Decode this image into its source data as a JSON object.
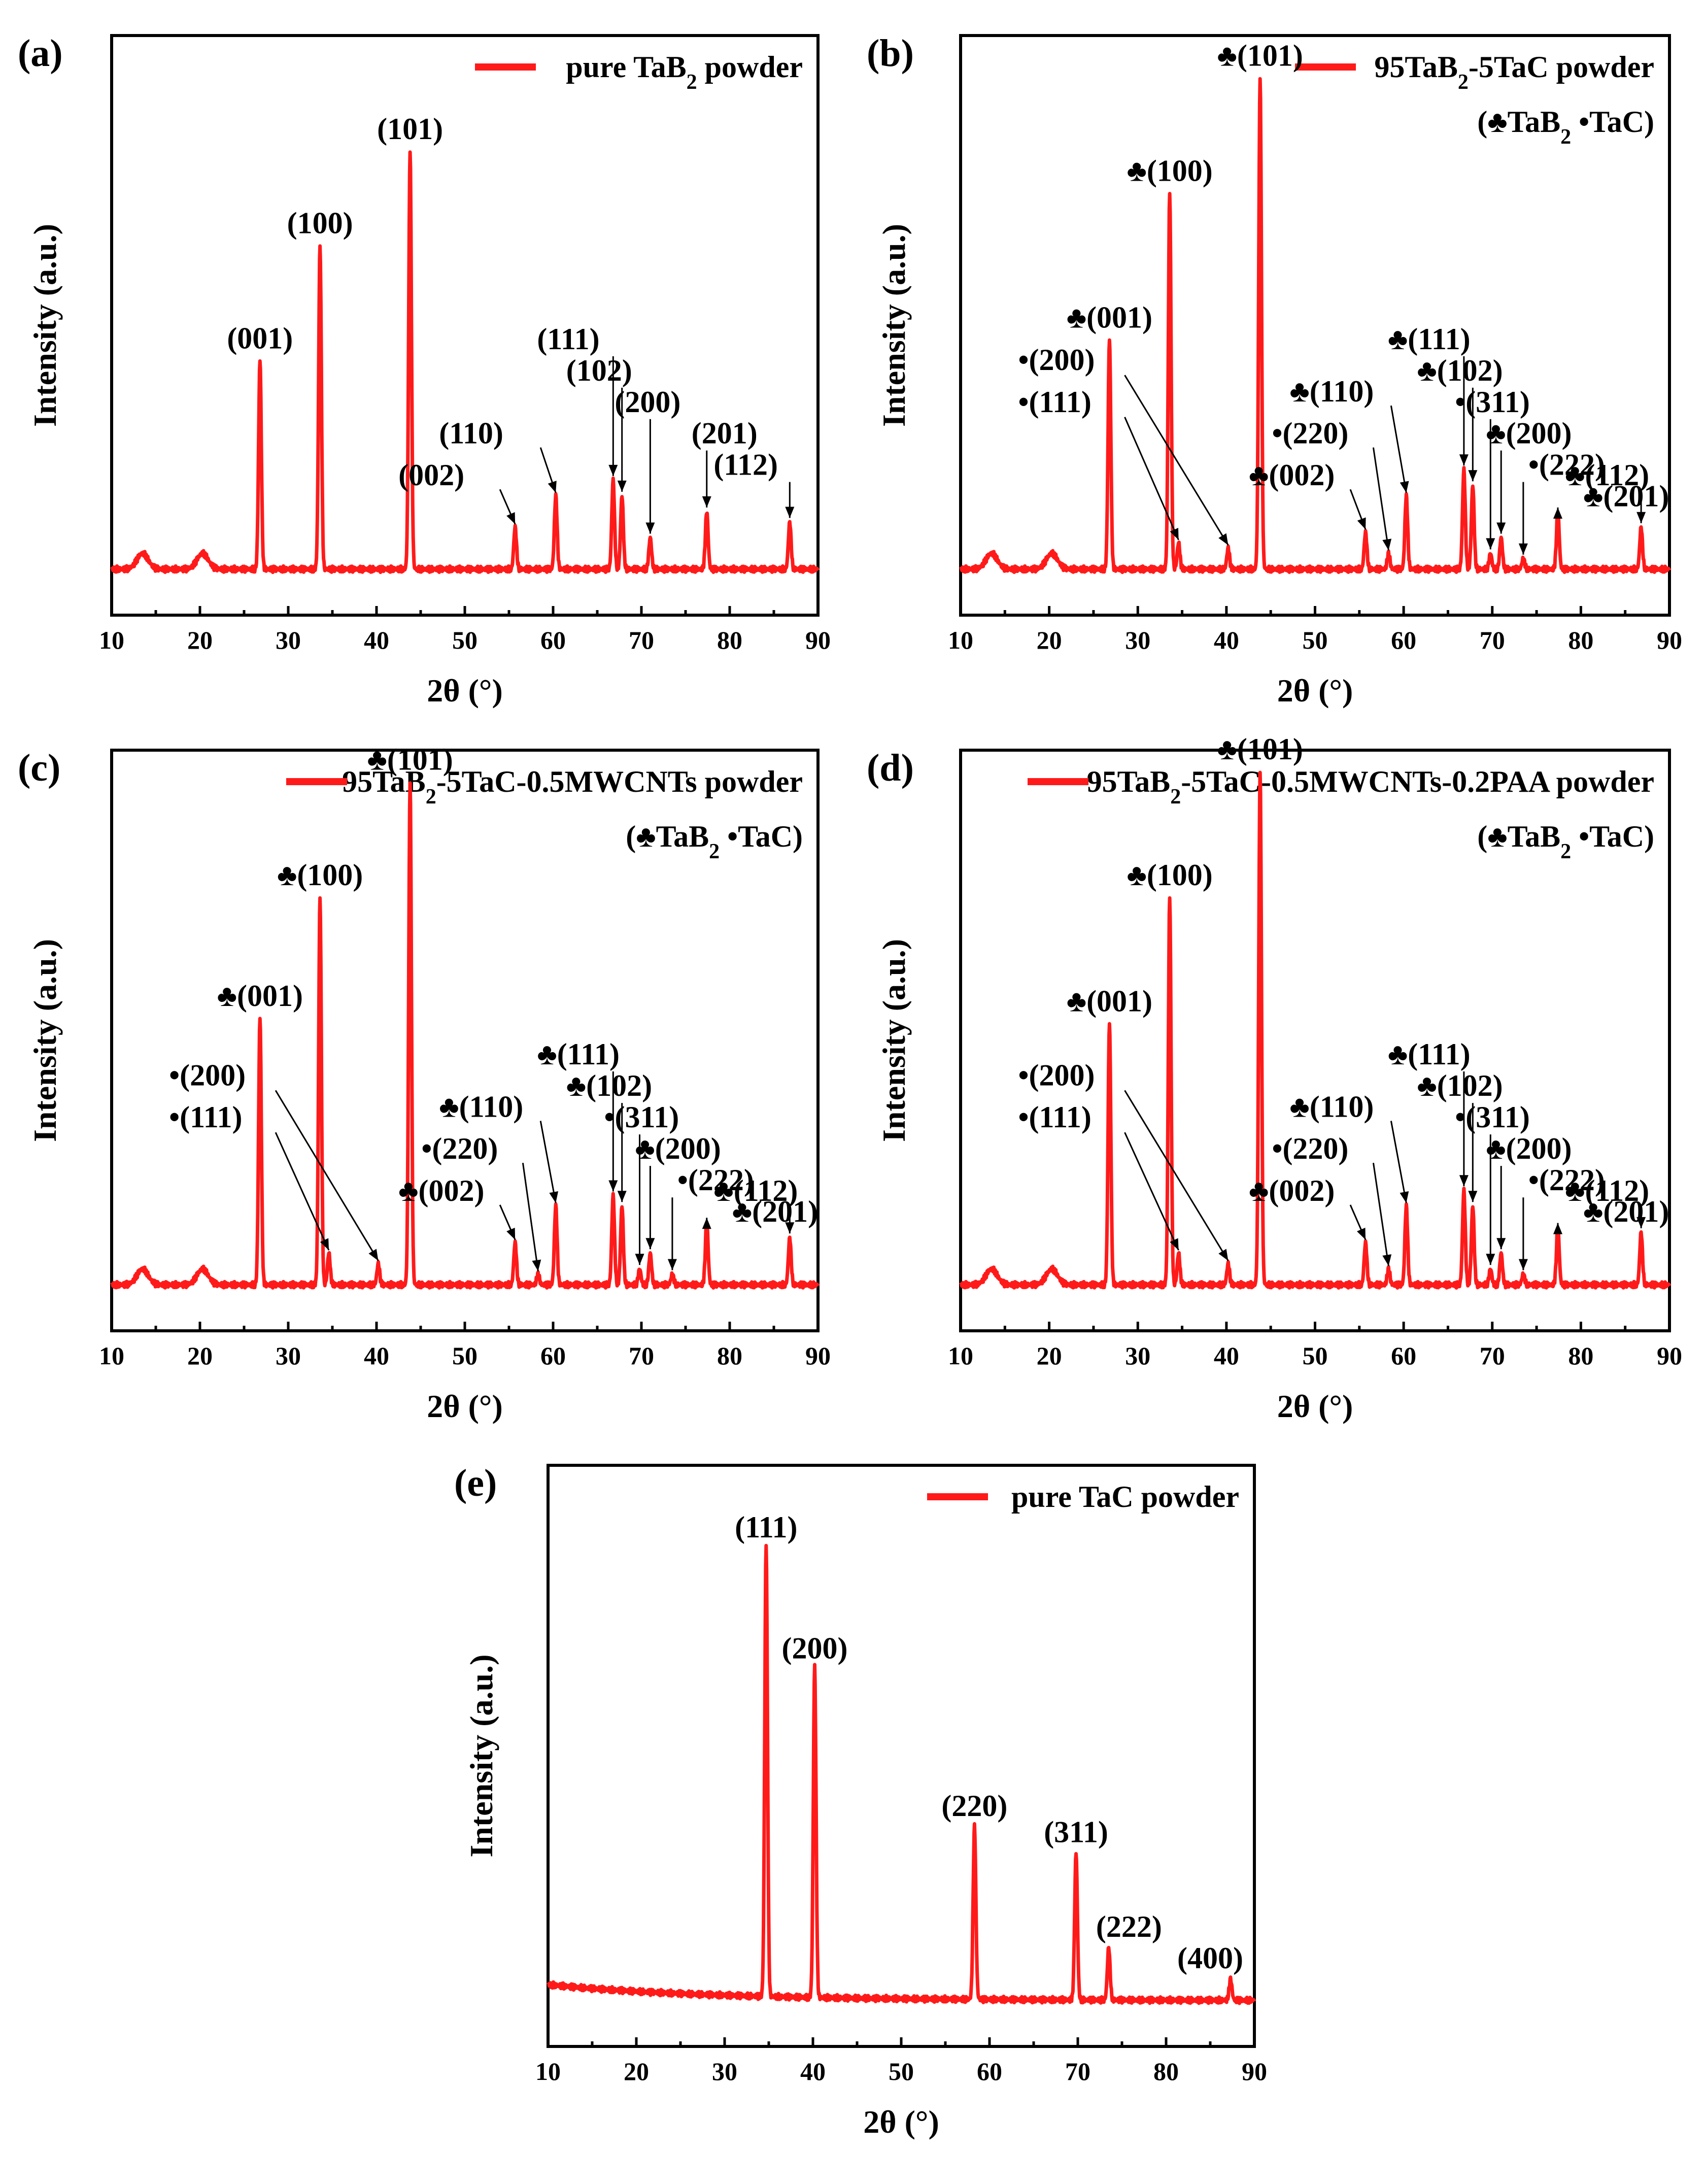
{
  "figure": {
    "x_label": "2θ (°)",
    "y_label": "Intensity (a.u.)",
    "x_ticks": [
      "10",
      "20",
      "30",
      "40",
      "50",
      "60",
      "70",
      "80",
      "90"
    ],
    "legend_markers": {
      "TaB2": "♣",
      "TaC": "•"
    },
    "phase_key": "(♣TaB₂ •TaC)",
    "line_color": "#ff1a1a"
  },
  "chart_data": [
    {
      "panel": "(a)",
      "type": "line",
      "title": "",
      "series": [
        {
          "name": "pure TaB₂ powder"
        }
      ],
      "xlabel": "2θ (°)",
      "ylabel": "Intensity (a.u.)",
      "xlim": [
        10,
        90
      ],
      "ylim": [
        0,
        100
      ],
      "x_ticks": [
        10,
        20,
        30,
        40,
        50,
        60,
        70,
        80,
        90
      ],
      "baseline": 2,
      "broad_bumps": [
        {
          "x": 13.5,
          "h": 3
        },
        {
          "x": 20.3,
          "h": 3
        }
      ],
      "peaks": [
        {
          "x": 26.8,
          "height": 40,
          "label": "(001)"
        },
        {
          "x": 33.6,
          "height": 62,
          "label": "(100)"
        },
        {
          "x": 43.8,
          "height": 80,
          "label": "(101)"
        },
        {
          "x": 55.7,
          "height": 8,
          "label": "(002)"
        },
        {
          "x": 60.3,
          "height": 14,
          "label": "(110)"
        },
        {
          "x": 66.8,
          "height": 17,
          "label": "(111)"
        },
        {
          "x": 67.8,
          "height": 14,
          "label": "(102)"
        },
        {
          "x": 71.0,
          "height": 6,
          "label": "(200)"
        },
        {
          "x": 77.4,
          "height": 11,
          "label": "(201)"
        },
        {
          "x": 86.8,
          "height": 9,
          "label": "(112)"
        }
      ]
    },
    {
      "panel": "(b)",
      "type": "line",
      "title": "",
      "series": [
        {
          "name": "95TaB₂-5TaC powder"
        }
      ],
      "phase_key": "(♣TaB₂ •TaC)",
      "xlabel": "2θ (°)",
      "ylabel": "Intensity (a.u.)",
      "xlim": [
        10,
        90
      ],
      "ylim": [
        0,
        100
      ],
      "x_ticks": [
        10,
        20,
        30,
        40,
        50,
        60,
        70,
        80,
        90
      ],
      "baseline": 2,
      "broad_bumps": [
        {
          "x": 13.5,
          "h": 3
        },
        {
          "x": 20.3,
          "h": 3
        }
      ],
      "peaks": [
        {
          "x": 26.8,
          "height": 44,
          "label": "♣(001)"
        },
        {
          "x": 33.6,
          "height": 72,
          "label": "♣(100)"
        },
        {
          "x": 34.6,
          "height": 5,
          "label": "•(111)"
        },
        {
          "x": 40.2,
          "height": 4,
          "label": "•(200)"
        },
        {
          "x": 43.8,
          "height": 94,
          "label": "♣(101)"
        },
        {
          "x": 55.7,
          "height": 7,
          "label": "♣(002)"
        },
        {
          "x": 58.3,
          "height": 3,
          "label": "•(220)"
        },
        {
          "x": 60.3,
          "height": 14,
          "label": "♣(110)"
        },
        {
          "x": 66.8,
          "height": 19,
          "label": "♣(111)"
        },
        {
          "x": 67.8,
          "height": 16,
          "label": "♣(102)"
        },
        {
          "x": 69.8,
          "height": 3,
          "label": "•(311)"
        },
        {
          "x": 71.0,
          "height": 6,
          "label": "♣(200)"
        },
        {
          "x": 73.5,
          "height": 2,
          "label": "•(222)"
        },
        {
          "x": 77.4,
          "height": 11,
          "label": "♣(201)"
        },
        {
          "x": 86.8,
          "height": 8,
          "label": "♣(112)"
        }
      ]
    },
    {
      "panel": "(c)",
      "type": "line",
      "title": "",
      "series": [
        {
          "name": "95TaB₂-5TaC-0.5MWCNTs powder"
        }
      ],
      "phase_key": "(♣TaB₂ •TaC)",
      "xlabel": "2θ (°)",
      "ylabel": "Intensity (a.u.)",
      "xlim": [
        10,
        90
      ],
      "ylim": [
        0,
        100
      ],
      "x_ticks": [
        10,
        20,
        30,
        40,
        50,
        60,
        70,
        80,
        90
      ],
      "baseline": 2,
      "broad_bumps": [
        {
          "x": 13.5,
          "h": 3
        },
        {
          "x": 20.3,
          "h": 3
        }
      ],
      "peaks": [
        {
          "x": 26.8,
          "height": 51,
          "label": "♣(001)"
        },
        {
          "x": 33.6,
          "height": 74,
          "label": "♣(100)"
        },
        {
          "x": 34.6,
          "height": 6,
          "label": "•(111)"
        },
        {
          "x": 40.2,
          "height": 4,
          "label": "•(200)"
        },
        {
          "x": 43.8,
          "height": 96,
          "label": "♣(101)"
        },
        {
          "x": 55.7,
          "height": 8,
          "label": "♣(002)"
        },
        {
          "x": 58.3,
          "height": 2,
          "label": "•(220)"
        },
        {
          "x": 60.3,
          "height": 15,
          "label": "♣(110)"
        },
        {
          "x": 66.8,
          "height": 17,
          "label": "♣(111)"
        },
        {
          "x": 67.8,
          "height": 15,
          "label": "♣(102)"
        },
        {
          "x": 69.8,
          "height": 3,
          "label": "•(311)"
        },
        {
          "x": 71.0,
          "height": 6,
          "label": "♣(200)"
        },
        {
          "x": 73.5,
          "height": 2,
          "label": "•(222)"
        },
        {
          "x": 77.4,
          "height": 12,
          "label": "♣(201)"
        },
        {
          "x": 86.8,
          "height": 9,
          "label": "♣(112)"
        }
      ]
    },
    {
      "panel": "(d)",
      "type": "line",
      "title": "",
      "series": [
        {
          "name": "95TaB₂-5TaC-0.5MWCNTs-0.2PAA powder"
        }
      ],
      "phase_key": "(♣TaB₂ •TaC)",
      "xlabel": "2θ (°)",
      "ylabel": "Intensity (a.u.)",
      "xlim": [
        10,
        90
      ],
      "ylim": [
        0,
        100
      ],
      "x_ticks": [
        10,
        20,
        30,
        40,
        50,
        60,
        70,
        80,
        90
      ],
      "baseline": 2,
      "broad_bumps": [
        {
          "x": 13.5,
          "h": 3
        },
        {
          "x": 20.3,
          "h": 3
        }
      ],
      "peaks": [
        {
          "x": 26.8,
          "height": 50,
          "label": "♣(001)"
        },
        {
          "x": 33.6,
          "height": 74,
          "label": "♣(100)"
        },
        {
          "x": 34.6,
          "height": 6,
          "label": "•(111)"
        },
        {
          "x": 40.2,
          "height": 4,
          "label": "•(200)"
        },
        {
          "x": 43.8,
          "height": 98,
          "label": "♣(101)"
        },
        {
          "x": 55.7,
          "height": 8,
          "label": "♣(002)"
        },
        {
          "x": 58.3,
          "height": 3,
          "label": "•(220)"
        },
        {
          "x": 60.3,
          "height": 15,
          "label": "♣(110)"
        },
        {
          "x": 66.8,
          "height": 18,
          "label": "♣(111)"
        },
        {
          "x": 67.8,
          "height": 15,
          "label": "♣(102)"
        },
        {
          "x": 69.8,
          "height": 3,
          "label": "•(311)"
        },
        {
          "x": 71.0,
          "height": 6,
          "label": "♣(200)"
        },
        {
          "x": 73.5,
          "height": 2,
          "label": "•(222)"
        },
        {
          "x": 77.4,
          "height": 11,
          "label": "♣(201)"
        },
        {
          "x": 86.8,
          "height": 10,
          "label": "♣(112)"
        }
      ]
    },
    {
      "panel": "(e)",
      "type": "line",
      "title": "",
      "series": [
        {
          "name": "pure TaC powder"
        }
      ],
      "xlabel": "2θ (°)",
      "ylabel": "Intensity (a.u.)",
      "xlim": [
        10,
        90
      ],
      "ylim": [
        0,
        100
      ],
      "x_ticks": [
        10,
        20,
        30,
        40,
        50,
        60,
        70,
        80,
        90
      ],
      "baseline": 2,
      "baseline_start": 5,
      "broad_bumps": [],
      "peaks": [
        {
          "x": 34.7,
          "height": 86,
          "label": "(111)"
        },
        {
          "x": 40.2,
          "height": 63,
          "label": "(200)"
        },
        {
          "x": 58.3,
          "height": 33,
          "label": "(220)"
        },
        {
          "x": 69.8,
          "height": 28,
          "label": "(311)"
        },
        {
          "x": 73.5,
          "height": 10,
          "label": "(222)"
        },
        {
          "x": 87.3,
          "height": 4,
          "label": "(400)"
        }
      ]
    }
  ]
}
